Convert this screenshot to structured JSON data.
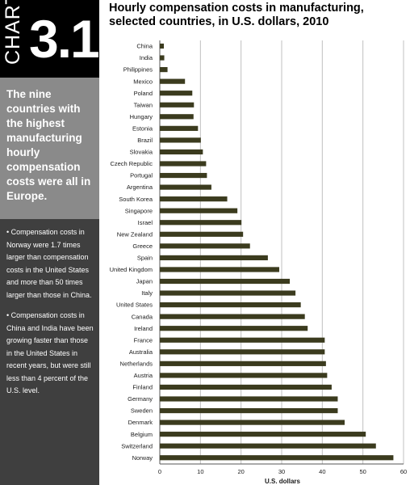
{
  "chart_label": {
    "word": "CHART",
    "number": "3.1"
  },
  "sidebar": {
    "headline": "The nine countries with the highest manufacturing hourly compensation costs were all in Europe.",
    "bullets": [
      "Compensation costs in Norway were 1.7 times larger than compensation costs in the United States and more than 50 times larger than those in China.",
      "Compensation costs in China and India have been growing faster than those in the United States in recent years, but were still less than 4 percent of the U.S. level."
    ]
  },
  "colors": {
    "bar": "#3b3b1e",
    "grid": "#c0c0c0",
    "sidebar_dark": "#3f3f3f",
    "sidebar_mid": "#8a8a8a",
    "badge": "#000000"
  },
  "chart_data": {
    "type": "bar",
    "orientation": "horizontal",
    "title": "Hourly compensation costs in manufacturing, selected countries, in U.S. dollars, 2010",
    "title_lines": [
      "Hourly compensation costs in manufacturing,",
      "selected countries, in U.S. dollars, 2010"
    ],
    "xlabel": "U.S. dollars",
    "ylabel": "",
    "xlim": [
      0,
      60
    ],
    "xticks": [
      0,
      10,
      20,
      30,
      40,
      50,
      60
    ],
    "grid": true,
    "categories": [
      "China",
      "India",
      "Philippines",
      "Mexico",
      "Poland",
      "Taiwan",
      "Hungary",
      "Estonia",
      "Brazil",
      "Slovakia",
      "Czech Republic",
      "Portugal",
      "Argentina",
      "South Korea",
      "Singapore",
      "Israel",
      "New Zealand",
      "Greece",
      "Spain",
      "United Kingdom",
      "Japan",
      "Italy",
      "United States",
      "Canada",
      "Ireland",
      "France",
      "Australia",
      "Netherlands",
      "Austria",
      "Finland",
      "Germany",
      "Sweden",
      "Denmark",
      "Belgium",
      "Switzerland",
      "Norway"
    ],
    "values": [
      1.0,
      1.1,
      1.9,
      6.2,
      8.0,
      8.4,
      8.3,
      9.4,
      10.1,
      10.6,
      11.4,
      11.6,
      12.7,
      16.6,
      19.1,
      20.1,
      20.5,
      22.2,
      26.6,
      29.4,
      32.0,
      33.4,
      34.7,
      35.7,
      36.4,
      40.6,
      40.6,
      40.9,
      41.2,
      42.3,
      43.8,
      43.8,
      45.5,
      50.7,
      53.2,
      57.5
    ]
  }
}
